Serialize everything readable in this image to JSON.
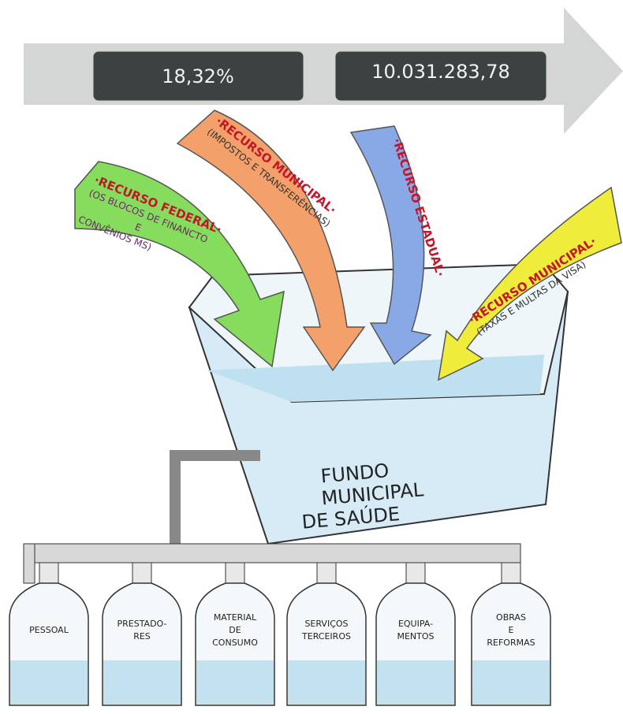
{
  "banner": {
    "percent": "18,32%",
    "amount": "10.031.283,78"
  },
  "arrows": [
    {
      "title": "·RECURSO FEDERAL·",
      "lines": [
        "(OS BLOCOS DE FINANCTO",
        "E",
        "CONVÊNIOS MS)"
      ]
    },
    {
      "title": "·RECURSO MUNICIPAL·",
      "lines": [
        "(IMPOSTOS E TRANSFERÊNCIAS)"
      ]
    },
    {
      "title": "·RECURSO ESTADUAL·",
      "lines": []
    },
    {
      "title": "·RECURSO MUNICIPAL·",
      "lines": [
        "(TAXAS E MULTAS DA VISA)"
      ]
    }
  ],
  "tank": {
    "lines": [
      "FUNDO",
      "MUNICIPAL",
      "DE SAÚDE"
    ]
  },
  "bottles": [
    {
      "lines": [
        "PESSOAL"
      ]
    },
    {
      "lines": [
        "PRESTADO-",
        "RES"
      ]
    },
    {
      "lines": [
        "MATERIAL",
        "DE",
        "CONSUMO"
      ]
    },
    {
      "lines": [
        "SERVIÇOS",
        "TERCEIROS"
      ]
    },
    {
      "lines": [
        "EQUIPA-",
        "MENTOS"
      ]
    },
    {
      "lines": [
        "OBRAS",
        "E",
        "REFORMAS"
      ]
    }
  ]
}
